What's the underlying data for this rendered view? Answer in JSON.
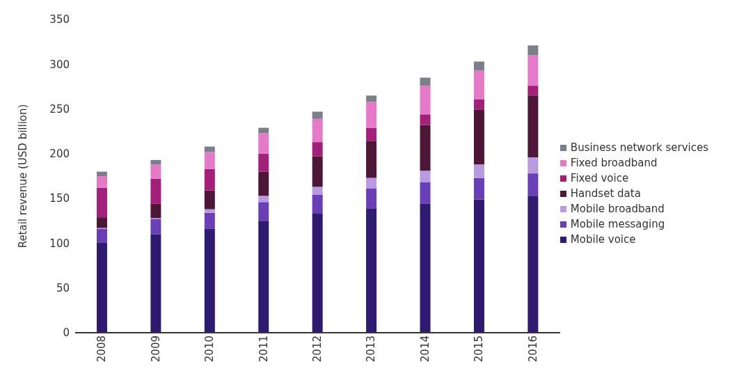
{
  "chart_data": {
    "type": "bar",
    "stacked": true,
    "ylabel": "Retail revenue (USD billion)",
    "categories": [
      "2008",
      "2009",
      "2010",
      "2011",
      "2012",
      "2013",
      "2014",
      "2015",
      "2016"
    ],
    "ylim": [
      0,
      350
    ],
    "yticks": [
      0,
      50,
      100,
      150,
      200,
      250,
      300,
      350
    ],
    "grid": false,
    "legend": "right",
    "series": [
      {
        "name": "Mobile voice",
        "color": "#2e1a6e",
        "values": [
          101,
          110,
          116,
          125,
          133,
          139,
          144,
          149,
          153
        ]
      },
      {
        "name": "Mobile messaging",
        "color": "#6a3fb5",
        "values": [
          15,
          17,
          18,
          21,
          21,
          22,
          24,
          24,
          25
        ]
      },
      {
        "name": "Mobile broadband",
        "color": "#b89ae0",
        "values": [
          1,
          1,
          4,
          7,
          9,
          12,
          13,
          15,
          18
        ]
      },
      {
        "name": "Handset data",
        "color": "#4e1636",
        "values": [
          12,
          16,
          21,
          27,
          34,
          41,
          51,
          61,
          69
        ]
      },
      {
        "name": "Fixed voice",
        "color": "#a3207a",
        "values": [
          33,
          28,
          24,
          20,
          16,
          15,
          12,
          12,
          11
        ]
      },
      {
        "name": "Fixed broadband",
        "color": "#e57ac8",
        "values": [
          13,
          16,
          19,
          23,
          26,
          29,
          32,
          32,
          34
        ]
      },
      {
        "name": "Business network services",
        "color": "#7a7f8a",
        "values": [
          5,
          5,
          6,
          6,
          8,
          7,
          9,
          10,
          11
        ]
      }
    ]
  }
}
